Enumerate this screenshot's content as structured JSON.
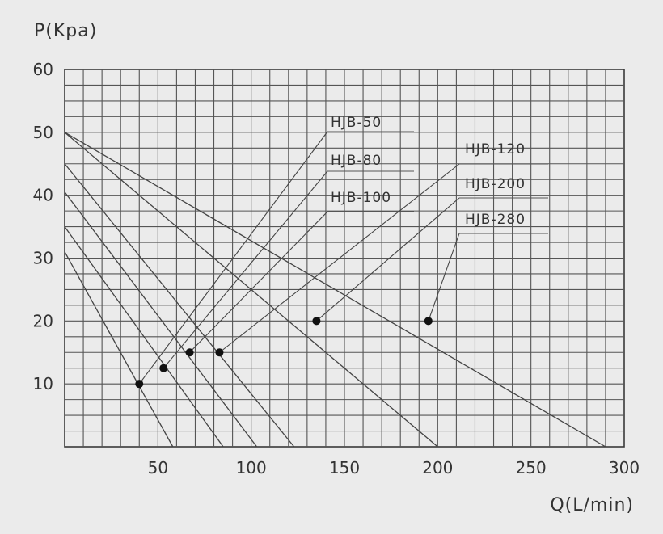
{
  "chart_data": {
    "type": "line",
    "ylabel": "P(Kpa)",
    "xlabel": "Q(L/min)",
    "xlim": [
      0,
      300
    ],
    "ylim": [
      0,
      60
    ],
    "x_ticks": [
      "50",
      "100",
      "150",
      "200",
      "250",
      "300"
    ],
    "y_ticks": [
      "10",
      "20",
      "30",
      "40",
      "50",
      "60"
    ],
    "grid": true,
    "series": [
      {
        "name": "HJB-50",
        "points": [
          [
            0,
            31
          ],
          [
            58,
            0
          ]
        ],
        "operating_point": [
          40,
          10
        ]
      },
      {
        "name": "HJB-80",
        "points": [
          [
            0,
            35
          ],
          [
            85,
            0
          ]
        ],
        "operating_point": [
          53,
          12.5
        ]
      },
      {
        "name": "HJB-100",
        "points": [
          [
            0,
            40.5
          ],
          [
            103,
            0
          ]
        ],
        "operating_point": [
          67,
          15
        ]
      },
      {
        "name": "HJB-120",
        "points": [
          [
            0,
            45
          ],
          [
            123,
            0
          ]
        ],
        "operating_point": [
          83,
          15
        ]
      },
      {
        "name": "HJB-200",
        "points": [
          [
            0,
            50
          ],
          [
            200,
            0
          ]
        ],
        "operating_point": [
          135,
          20
        ]
      },
      {
        "name": "HJB-280",
        "points": [
          [
            0,
            50
          ],
          [
            290,
            0
          ]
        ],
        "operating_point": [
          195,
          20
        ]
      }
    ]
  }
}
